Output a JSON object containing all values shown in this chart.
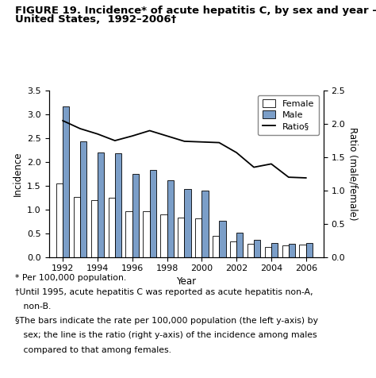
{
  "years": [
    1992,
    1993,
    1994,
    1995,
    1996,
    1997,
    1998,
    1999,
    2000,
    2001,
    2002,
    2003,
    2004,
    2005,
    2006
  ],
  "female": [
    1.55,
    1.27,
    1.2,
    1.25,
    0.97,
    0.97,
    0.9,
    0.83,
    0.82,
    0.45,
    0.33,
    0.28,
    0.22,
    0.24,
    0.27
  ],
  "male": [
    3.17,
    2.43,
    2.2,
    2.18,
    1.75,
    1.83,
    1.62,
    1.43,
    1.4,
    0.76,
    0.51,
    0.37,
    0.3,
    0.28,
    0.29
  ],
  "ratio": [
    2.05,
    1.93,
    1.85,
    1.75,
    1.82,
    1.9,
    1.82,
    1.74,
    1.73,
    1.72,
    1.57,
    1.35,
    1.4,
    1.2,
    1.19
  ],
  "female_color": "#ffffff",
  "male_color": "#7b9ec8",
  "ratio_color": "#000000",
  "bar_edge_color": "#000000",
  "title_line1": "FIGURE 19. Incidence* of acute hepatitis C, by sex and year —",
  "title_line2": "United States,  1992–2006†",
  "xlabel": "Year",
  "ylabel_left": "Incidence",
  "ylabel_right": "Ratio (male/female)",
  "ylim_left": [
    0,
    3.5
  ],
  "ylim_right": [
    0,
    2.5
  ],
  "yticks_left": [
    0,
    0.5,
    1.0,
    1.5,
    2.0,
    2.5,
    3.0,
    3.5
  ],
  "yticks_right": [
    0,
    0.5,
    1.0,
    1.5,
    2.0,
    2.5
  ],
  "footnote1": "* Per 100,000 population.",
  "footnote2": "†Until 1995, acute hepatitis C was reported as acute hepatitis non-A,",
  "footnote3": "   non-B.",
  "footnote4": "§The bars indicate the rate per 100,000 population (the left y-axis) by",
  "footnote5": "   sex; the line is the ratio (right y-axis) of the incidence among males",
  "footnote6": "   compared to that among females.",
  "bar_width": 0.38,
  "title_fontsize": 9.5,
  "axis_fontsize": 8.5,
  "tick_fontsize": 8,
  "legend_fontsize": 8,
  "footnote_fontsize": 7.8
}
